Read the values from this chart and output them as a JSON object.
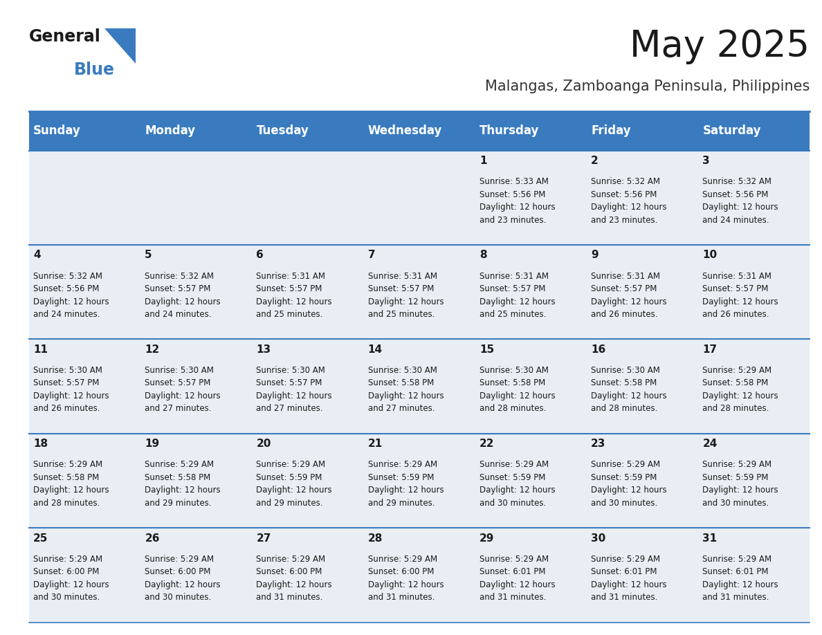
{
  "title": "May 2025",
  "subtitle": "Malangas, Zamboanga Peninsula, Philippines",
  "header_color": "#3a7bbf",
  "header_text_color": "#ffffff",
  "cell_bg_color": "#e8eef4",
  "background_color": "#ffffff",
  "line_color": "#3a7bbf",
  "day_headers": [
    "Sunday",
    "Monday",
    "Tuesday",
    "Wednesday",
    "Thursday",
    "Friday",
    "Saturday"
  ],
  "calendar_data": [
    [
      "",
      "",
      "",
      "",
      "1\nSunrise: 5:33 AM\nSunset: 5:56 PM\nDaylight: 12 hours\nand 23 minutes.",
      "2\nSunrise: 5:32 AM\nSunset: 5:56 PM\nDaylight: 12 hours\nand 23 minutes.",
      "3\nSunrise: 5:32 AM\nSunset: 5:56 PM\nDaylight: 12 hours\nand 24 minutes."
    ],
    [
      "4\nSunrise: 5:32 AM\nSunset: 5:56 PM\nDaylight: 12 hours\nand 24 minutes.",
      "5\nSunrise: 5:32 AM\nSunset: 5:57 PM\nDaylight: 12 hours\nand 24 minutes.",
      "6\nSunrise: 5:31 AM\nSunset: 5:57 PM\nDaylight: 12 hours\nand 25 minutes.",
      "7\nSunrise: 5:31 AM\nSunset: 5:57 PM\nDaylight: 12 hours\nand 25 minutes.",
      "8\nSunrise: 5:31 AM\nSunset: 5:57 PM\nDaylight: 12 hours\nand 25 minutes.",
      "9\nSunrise: 5:31 AM\nSunset: 5:57 PM\nDaylight: 12 hours\nand 26 minutes.",
      "10\nSunrise: 5:31 AM\nSunset: 5:57 PM\nDaylight: 12 hours\nand 26 minutes."
    ],
    [
      "11\nSunrise: 5:30 AM\nSunset: 5:57 PM\nDaylight: 12 hours\nand 26 minutes.",
      "12\nSunrise: 5:30 AM\nSunset: 5:57 PM\nDaylight: 12 hours\nand 27 minutes.",
      "13\nSunrise: 5:30 AM\nSunset: 5:57 PM\nDaylight: 12 hours\nand 27 minutes.",
      "14\nSunrise: 5:30 AM\nSunset: 5:58 PM\nDaylight: 12 hours\nand 27 minutes.",
      "15\nSunrise: 5:30 AM\nSunset: 5:58 PM\nDaylight: 12 hours\nand 28 minutes.",
      "16\nSunrise: 5:30 AM\nSunset: 5:58 PM\nDaylight: 12 hours\nand 28 minutes.",
      "17\nSunrise: 5:29 AM\nSunset: 5:58 PM\nDaylight: 12 hours\nand 28 minutes."
    ],
    [
      "18\nSunrise: 5:29 AM\nSunset: 5:58 PM\nDaylight: 12 hours\nand 28 minutes.",
      "19\nSunrise: 5:29 AM\nSunset: 5:58 PM\nDaylight: 12 hours\nand 29 minutes.",
      "20\nSunrise: 5:29 AM\nSunset: 5:59 PM\nDaylight: 12 hours\nand 29 minutes.",
      "21\nSunrise: 5:29 AM\nSunset: 5:59 PM\nDaylight: 12 hours\nand 29 minutes.",
      "22\nSunrise: 5:29 AM\nSunset: 5:59 PM\nDaylight: 12 hours\nand 30 minutes.",
      "23\nSunrise: 5:29 AM\nSunset: 5:59 PM\nDaylight: 12 hours\nand 30 minutes.",
      "24\nSunrise: 5:29 AM\nSunset: 5:59 PM\nDaylight: 12 hours\nand 30 minutes."
    ],
    [
      "25\nSunrise: 5:29 AM\nSunset: 6:00 PM\nDaylight: 12 hours\nand 30 minutes.",
      "26\nSunrise: 5:29 AM\nSunset: 6:00 PM\nDaylight: 12 hours\nand 30 minutes.",
      "27\nSunrise: 5:29 AM\nSunset: 6:00 PM\nDaylight: 12 hours\nand 31 minutes.",
      "28\nSunrise: 5:29 AM\nSunset: 6:00 PM\nDaylight: 12 hours\nand 31 minutes.",
      "29\nSunrise: 5:29 AM\nSunset: 6:01 PM\nDaylight: 12 hours\nand 31 minutes.",
      "30\nSunrise: 5:29 AM\nSunset: 6:01 PM\nDaylight: 12 hours\nand 31 minutes.",
      "31\nSunrise: 5:29 AM\nSunset: 6:01 PM\nDaylight: 12 hours\nand 31 minutes."
    ]
  ],
  "title_fontsize": 38,
  "subtitle_fontsize": 15,
  "day_header_fontsize": 12,
  "cell_day_fontsize": 11,
  "cell_text_fontsize": 8.5,
  "logo_general_fontsize": 17,
  "logo_blue_fontsize": 17
}
